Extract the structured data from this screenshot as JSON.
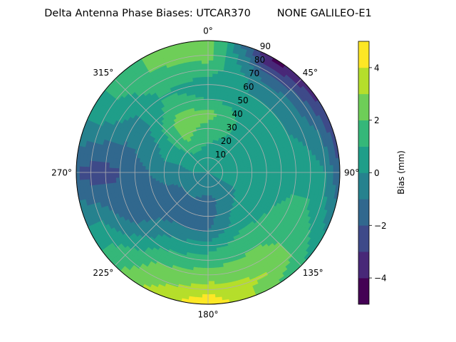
{
  "chart_data": {
    "type": "heatmap",
    "projection": "polar",
    "title": "Delta Antenna Phase Biases: UTCAR370        NONE GALILEO-E1",
    "azimuth_direction": "clockwise",
    "azimuth_zero": "top",
    "azimuth_ticks": [
      "0°",
      "45°",
      "90°",
      "135°",
      "180°",
      "225°",
      "270°",
      "315°"
    ],
    "azimuth_tick_values": [
      0,
      45,
      90,
      135,
      180,
      225,
      270,
      315
    ],
    "radial_ticks": [
      "10",
      "20",
      "30",
      "40",
      "50",
      "60",
      "70",
      "80",
      "90"
    ],
    "radial_tick_values": [
      10,
      20,
      30,
      40,
      50,
      60,
      70,
      80,
      90
    ],
    "radial_range": [
      0,
      90
    ],
    "radial_label_azimuth": 22.5,
    "grid": true,
    "colorbar": {
      "label": "Bias (mm)",
      "placement": "right",
      "levels": [
        -5,
        -4,
        -3,
        -2,
        -1,
        0,
        1,
        2,
        3,
        4,
        5
      ],
      "ticks": [
        "−4",
        "−2",
        "0",
        "2",
        "4"
      ],
      "tick_values": [
        -4,
        -2,
        0,
        2,
        4
      ],
      "colors": [
        "#440154",
        "#482878",
        "#3e4a89",
        "#31688e",
        "#26828e",
        "#1f9e89",
        "#35b779",
        "#6ece58",
        "#b5de2b",
        "#fde725"
      ]
    },
    "azimuth_samples": [
      0,
      30,
      60,
      90,
      120,
      150,
      180,
      210,
      240,
      270,
      300,
      330
    ],
    "zenith_samples": [
      0,
      10,
      20,
      30,
      40,
      50,
      60,
      70,
      80,
      90
    ],
    "values": [
      [
        0.0,
        0.5,
        1.0,
        1.5,
        2.5,
        1.0,
        0.5,
        1.5,
        2.5,
        3.0
      ],
      [
        0.0,
        0.5,
        0.8,
        1.0,
        1.0,
        0.5,
        0.0,
        -0.5,
        -2.5,
        -4.5
      ],
      [
        0.0,
        0.3,
        0.5,
        0.5,
        0.5,
        0.5,
        0.0,
        -0.5,
        -1.5,
        -3.0
      ],
      [
        0.0,
        0.0,
        0.0,
        0.0,
        0.5,
        0.5,
        0.5,
        0.5,
        0.0,
        -2.0
      ],
      [
        0.0,
        0.0,
        0.0,
        0.5,
        0.5,
        1.0,
        1.5,
        1.5,
        1.0,
        0.0
      ],
      [
        0.0,
        -0.5,
        -0.5,
        0.0,
        0.5,
        1.5,
        2.0,
        2.5,
        3.0,
        2.0
      ],
      [
        0.0,
        -0.5,
        -1.5,
        -1.5,
        -1.0,
        0.5,
        1.5,
        2.5,
        3.5,
        5.0
      ],
      [
        0.0,
        -0.5,
        -1.0,
        -1.5,
        -1.0,
        0.0,
        1.0,
        2.0,
        2.5,
        3.0
      ],
      [
        0.0,
        -0.5,
        -1.0,
        -1.5,
        -1.5,
        -1.5,
        -1.5,
        -0.5,
        0.5,
        0.5
      ],
      [
        0.0,
        0.0,
        -0.5,
        -0.5,
        -1.0,
        -1.5,
        -2.0,
        -2.5,
        -2.5,
        -2.0
      ],
      [
        0.0,
        0.5,
        0.5,
        0.5,
        0.0,
        -0.5,
        -0.5,
        0.0,
        0.5,
        0.5
      ],
      [
        0.0,
        0.5,
        1.5,
        2.5,
        2.5,
        1.5,
        1.0,
        1.5,
        2.0,
        2.0
      ]
    ]
  }
}
